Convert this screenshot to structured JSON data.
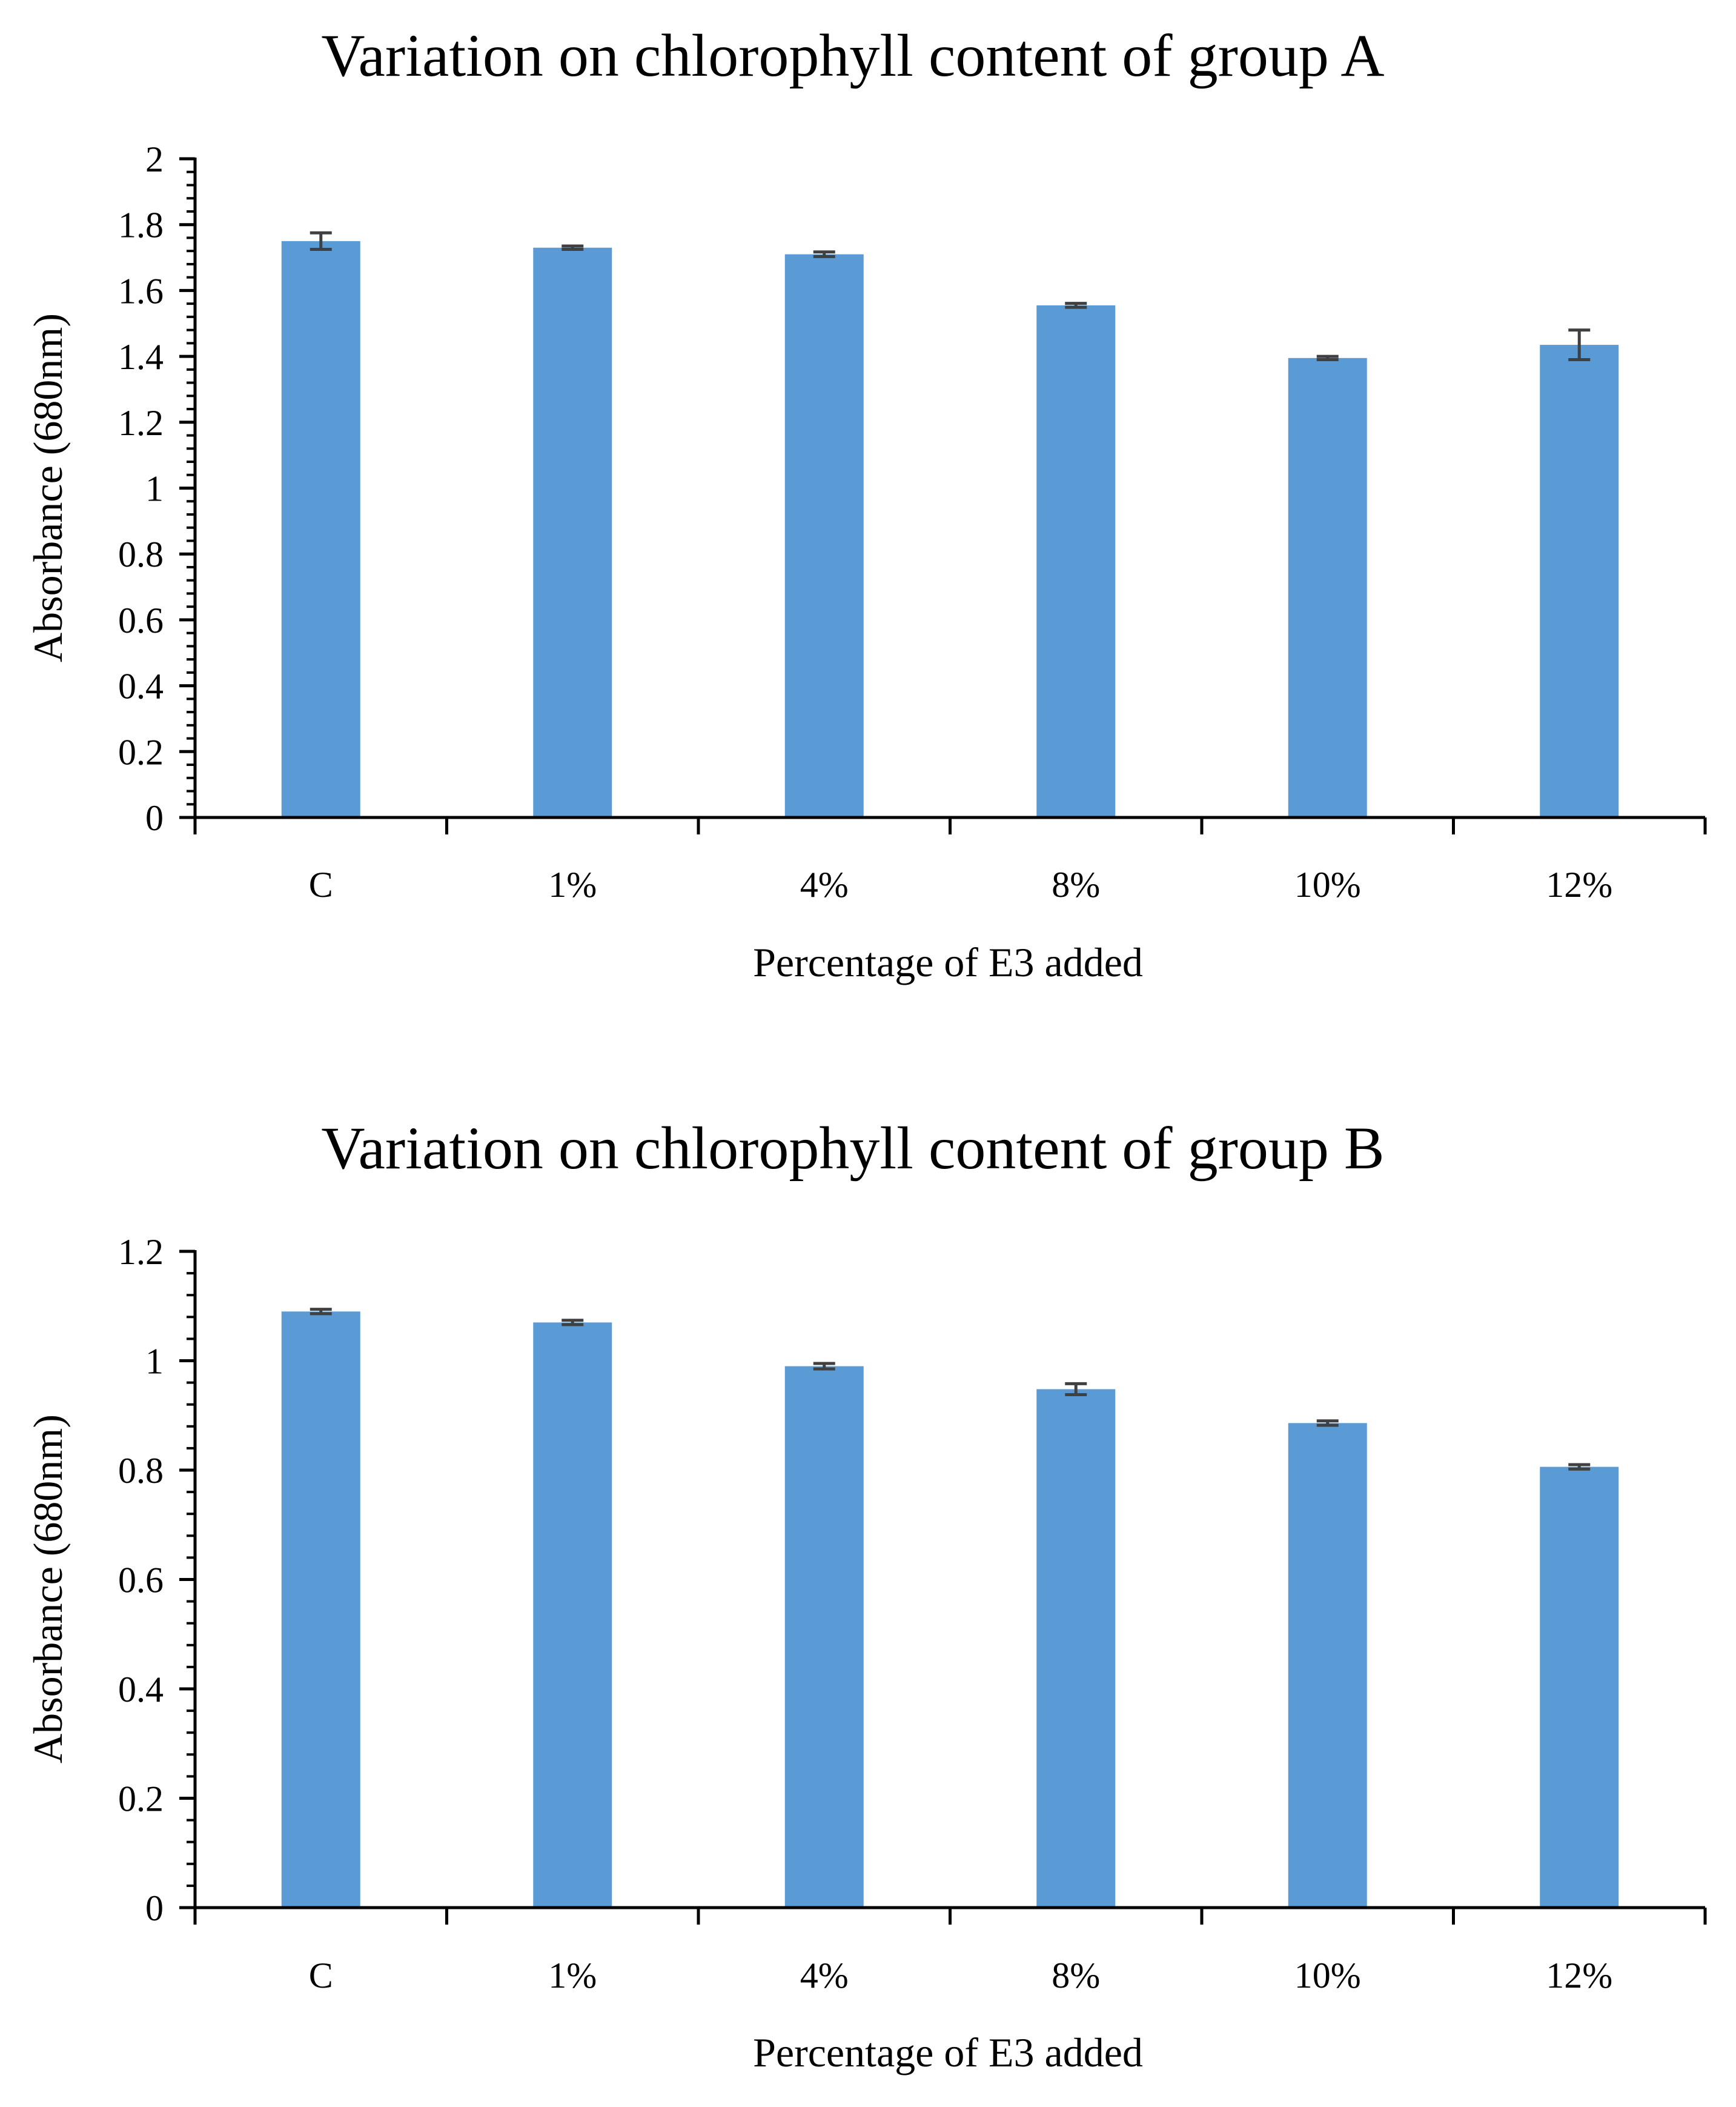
{
  "chart_data": [
    {
      "type": "bar",
      "title": "Variation on chlorophyll content of group A",
      "xlabel": "Percentage of E3 added",
      "ylabel": "Absorbance (680nm)",
      "categories": [
        "C",
        "1%",
        "4%",
        "8%",
        "10%",
        "12%"
      ],
      "values": [
        1.75,
        1.73,
        1.71,
        1.555,
        1.395,
        1.435
      ],
      "errors": [
        0.025,
        0.005,
        0.007,
        0.006,
        0.005,
        0.045
      ],
      "ylim": [
        0,
        2
      ],
      "yticks": [
        0,
        0.2,
        0.4,
        0.6,
        0.8,
        1,
        1.2,
        1.4,
        1.6,
        1.8,
        2
      ],
      "ytick_labels": [
        "0",
        "0.2",
        "0.4",
        "0.6",
        "0.8",
        "1",
        "1.2",
        "1.4",
        "1.6",
        "1.8",
        "2"
      ],
      "minor_tick_step": 0.04,
      "grid": false,
      "bar_color": "#5B9BD5",
      "error_color": "#404040"
    },
    {
      "type": "bar",
      "title": "Variation on chlorophyll content of group B",
      "xlabel": "Percentage of E3 added",
      "ylabel": "Absorbance (680nm)",
      "categories": [
        "C",
        "1%",
        "4%",
        "8%",
        "10%",
        "12%"
      ],
      "values": [
        1.09,
        1.07,
        0.99,
        0.948,
        0.886,
        0.806
      ],
      "errors": [
        0.004,
        0.004,
        0.005,
        0.01,
        0.004,
        0.004
      ],
      "ylim": [
        0,
        1.2
      ],
      "yticks": [
        0,
        0.2,
        0.4,
        0.6,
        0.8,
        1,
        1.2
      ],
      "ytick_labels": [
        "0",
        "0.2",
        "0.4",
        "0.6",
        "0.8",
        "1",
        "1.2"
      ],
      "minor_tick_step": 0.04,
      "grid": false,
      "bar_color": "#5B9BD5",
      "error_color": "#404040"
    }
  ]
}
